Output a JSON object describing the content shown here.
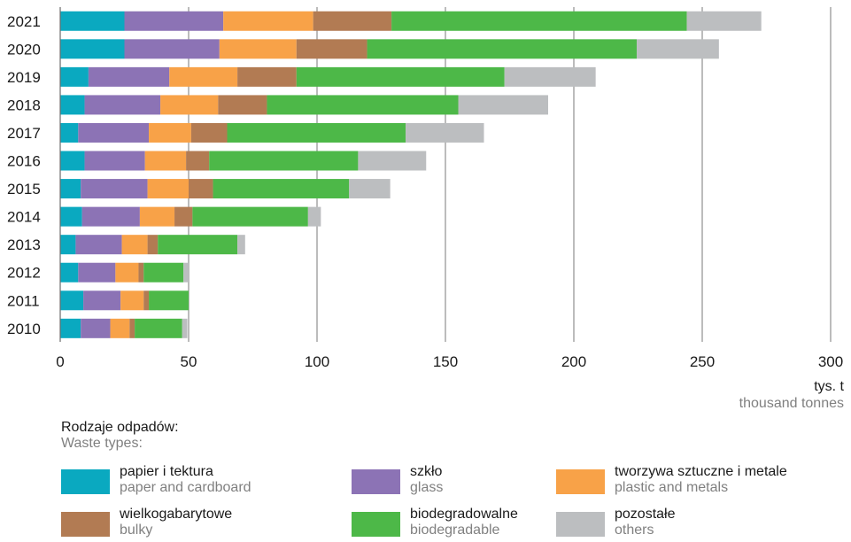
{
  "chart_data": {
    "type": "bar",
    "orientation": "horizontal",
    "stacked": true,
    "categories": [
      "2021",
      "2020",
      "2019",
      "2018",
      "2017",
      "2016",
      "2015",
      "2014",
      "2013",
      "2012",
      "2011",
      "2010"
    ],
    "series": [
      {
        "name": "papier i tektura",
        "name_en": "paper and cardboard",
        "color": "#0aa9c0",
        "values": [
          25,
          25,
          11,
          9.5,
          7,
          9.5,
          8,
          8.5,
          6,
          7,
          9,
          8
        ]
      },
      {
        "name": "szkło",
        "name_en": "glass",
        "color": "#8c73b5",
        "values": [
          38.5,
          37,
          31.5,
          29.5,
          27.5,
          23.5,
          26,
          22.5,
          18,
          14.5,
          14.5,
          11.5
        ]
      },
      {
        "name": "tworzywa sztuczne i metale",
        "name_en": "plastic and metals",
        "color": "#f8a248",
        "values": [
          35,
          30,
          26.5,
          22.5,
          16.5,
          16,
          16,
          13.5,
          10,
          9,
          9,
          7.5
        ]
      },
      {
        "name": "wielkogabarytowe",
        "name_en": "bulky",
        "color": "#b27b53",
        "values": [
          30.5,
          27.5,
          23,
          19,
          14,
          9,
          9.5,
          7,
          4,
          2,
          2,
          2
        ]
      },
      {
        "name": "biodegradowalne",
        "name_en": "biodegradable",
        "color": "#4db848",
        "values": [
          115,
          105,
          81,
          74.5,
          69.5,
          58,
          53,
          45,
          31,
          15.5,
          15.5,
          18.5
        ]
      },
      {
        "name": "pozostałe",
        "name_en": "others",
        "color": "#bcbec0",
        "values": [
          29,
          32,
          35.5,
          35,
          30.5,
          26.5,
          16,
          5,
          3,
          2,
          0,
          2
        ]
      }
    ],
    "xlim": [
      0,
      300
    ],
    "xticks": [
      "0",
      "50",
      "100",
      "150",
      "200",
      "250",
      "300"
    ],
    "xlabel": "tys. t",
    "xlabel_en": "thousand tonnes",
    "grid": "vertical",
    "legend_placement": "bottom",
    "legend_title": "Rodzaje odpadów:",
    "legend_title_en": "Waste types:"
  }
}
